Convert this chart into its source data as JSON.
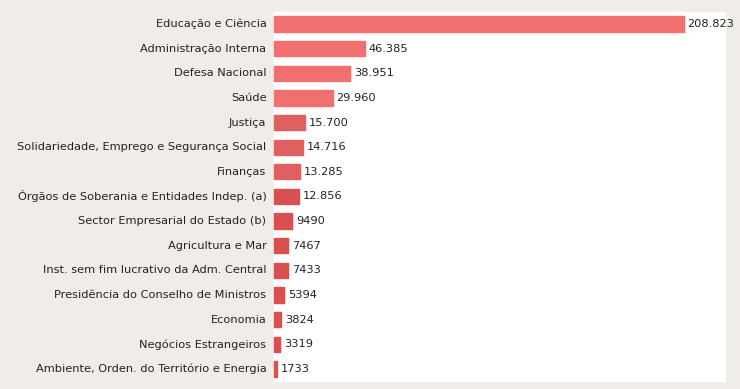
{
  "categories": [
    "Educação e Ciência",
    "Administração Interna",
    "Defesa Nacional",
    "Saúde",
    "Justiça",
    "Solidariedade, Emprego e Segurança Social",
    "Finanças",
    "Órgãos de Soberania e Entidades Indep. (a)",
    "Sector Empresarial do Estado (b)",
    "Agricultura e Mar",
    "Inst. sem fim lucrativo da Adm. Central",
    "Presidência do Conselho de Ministros",
    "Economia",
    "Negócios Estrangeiros",
    "Ambiente, Orden. do Território e Energia"
  ],
  "values": [
    208823,
    46385,
    38951,
    29960,
    15700,
    14716,
    13285,
    12856,
    9490,
    7467,
    7433,
    5394,
    3824,
    3319,
    1733
  ],
  "labels": [
    "208.823",
    "46.385",
    "38.951",
    "29.960",
    "15.700",
    "14.716",
    "13.285",
    "12.856",
    "9490",
    "7467",
    "7433",
    "5394",
    "3824",
    "3319",
    "1733"
  ],
  "bar_color_large": "#f07070",
  "bar_color_medium": "#e06060",
  "bar_color_small": "#d85050",
  "background_left": "#f0ede8",
  "background_right": "#ffffff",
  "text_color": "#222222",
  "label_color": "#222222",
  "category_fontsize": 8.2,
  "value_fontsize": 8.2,
  "bar_height": 0.62,
  "xlim": 230000,
  "threshold_large": 29000,
  "threshold_medium": 13000
}
